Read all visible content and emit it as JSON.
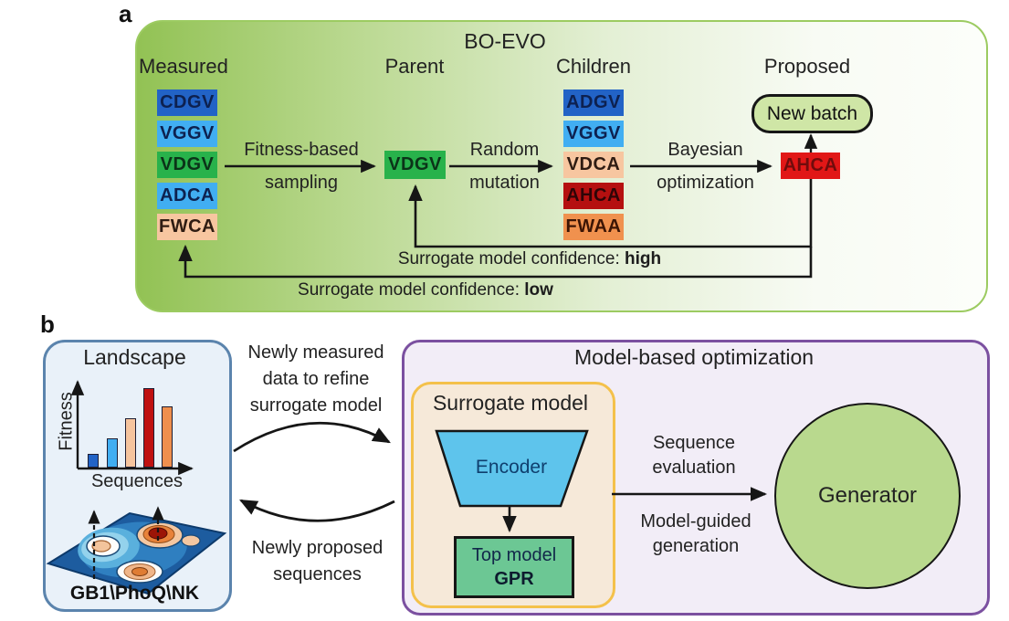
{
  "panel_a": {
    "label": "a",
    "title": "BO-EVO",
    "headers": {
      "measured": "Measured",
      "parent": "Parent",
      "children": "Children",
      "proposed": "Proposed"
    },
    "measured": [
      {
        "text": "CDGV",
        "bg": "#2263c6",
        "fg": "#0d2150"
      },
      {
        "text": "VGGV",
        "bg": "#41aef2",
        "fg": "#0d2150"
      },
      {
        "text": "VDGV",
        "bg": "#28b24b",
        "fg": "#0b3318"
      },
      {
        "text": "ADCA",
        "bg": "#41aef2",
        "fg": "#0d2150"
      },
      {
        "text": "FWCA",
        "bg": "#f7c6a0",
        "fg": "#2f1c12"
      }
    ],
    "parent": {
      "text": "VDGV",
      "bg": "#28b24b",
      "fg": "#0b3318"
    },
    "children": [
      {
        "text": "ADGV",
        "bg": "#2263c6",
        "fg": "#0d2150"
      },
      {
        "text": "VGGV",
        "bg": "#41aef2",
        "fg": "#0d2150"
      },
      {
        "text": "VDCA",
        "bg": "#f7c6a0",
        "fg": "#2f1c12"
      },
      {
        "text": "AHCA",
        "bg": "#b51010",
        "fg": "#2e0507"
      },
      {
        "text": "FWAA",
        "bg": "#f0914e",
        "fg": "#3c1505"
      }
    ],
    "proposed": {
      "text": "AHCA",
      "bg": "#e11717",
      "fg": "#700c0c"
    },
    "new_batch": "New batch",
    "arrows": {
      "sampling": [
        "Fitness-based",
        "sampling"
      ],
      "mutation": [
        "Random",
        "mutation"
      ],
      "bayesian": [
        "Bayesian",
        "optimization"
      ],
      "high_prefix": "Surrogate model confidence: ",
      "high_bold": "high",
      "low_prefix": "Surrogate model confidence: ",
      "low_bold": "low"
    }
  },
  "panel_b": {
    "label": "b",
    "landscape": {
      "title": "Landscape",
      "ylabel": "Fitness",
      "xlabel": "Sequences",
      "dataset": "GB1\\PhoQ\\NK",
      "bars": [
        {
          "h": 15,
          "color": "#2263c6"
        },
        {
          "h": 32,
          "color": "#41aef2"
        },
        {
          "h": 54,
          "color": "#f6c49e"
        },
        {
          "h": 87,
          "color": "#bf1111"
        },
        {
          "h": 67,
          "color": "#ef8f4e"
        }
      ],
      "style": {
        "bg": "#e9f1f9",
        "border": "#5b84ad"
      }
    },
    "cycle": {
      "to_model": [
        "Newly measured",
        "data to refine",
        "surrogate model"
      ],
      "to_landscape": [
        "Newly proposed",
        "sequences"
      ]
    },
    "mbo": {
      "title": "Model-based optimization",
      "style": {
        "bg": "#f2edf7",
        "border": "#7b50a0"
      },
      "surrogate": {
        "title": "Surrogate model",
        "style": {
          "bg": "#f6e9d9",
          "border": "#f4c14b"
        },
        "encoder": {
          "label": "Encoder",
          "bg": "#5ec4ec",
          "fg": "#0f3f6e"
        },
        "top_model": {
          "line1": "Top model",
          "line2": "GPR",
          "bg": "#6cc794"
        }
      },
      "evaluation": [
        "Sequence",
        "evaluation"
      ],
      "generation": [
        "Model-guided",
        "generation"
      ],
      "generator": {
        "label": "Generator",
        "bg": "#b9d98e"
      }
    }
  }
}
